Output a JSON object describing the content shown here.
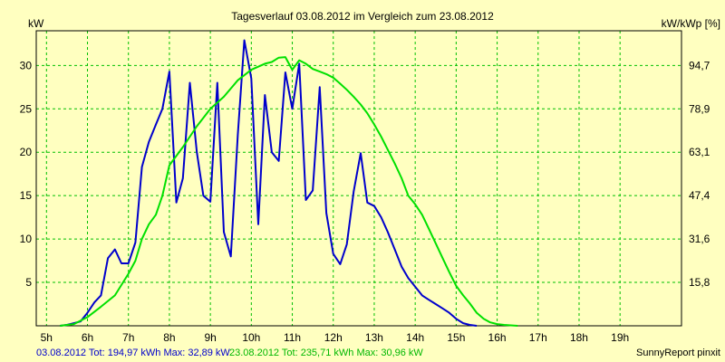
{
  "chart_data": {
    "type": "line",
    "title": "Tagesverlauf 03.08.2012 im Vergleich zum 23.08.2012",
    "ylabel_left": "kW",
    "ylabel_right": "kW/kWp [%]",
    "xlim": [
      4.75,
      20.5
    ],
    "ylim": [
      0,
      34
    ],
    "x_ticks": [
      {
        "x": 5,
        "label": "5h"
      },
      {
        "x": 6,
        "label": "6h"
      },
      {
        "x": 7,
        "label": "7h"
      },
      {
        "x": 8,
        "label": "8h"
      },
      {
        "x": 9,
        "label": "9h"
      },
      {
        "x": 10,
        "label": "10h"
      },
      {
        "x": 11,
        "label": "11h"
      },
      {
        "x": 12,
        "label": "12h"
      },
      {
        "x": 13,
        "label": "13h"
      },
      {
        "x": 14,
        "label": "14h"
      },
      {
        "x": 15,
        "label": "15h"
      },
      {
        "x": 16,
        "label": "16h"
      },
      {
        "x": 17,
        "label": "17h"
      },
      {
        "x": 18,
        "label": "18h"
      },
      {
        "x": 19,
        "label": "19h"
      }
    ],
    "y_ticks_left": [
      {
        "y": 5,
        "label": "5"
      },
      {
        "y": 10,
        "label": "10"
      },
      {
        "y": 15,
        "label": "15"
      },
      {
        "y": 20,
        "label": "20"
      },
      {
        "y": 25,
        "label": "25"
      },
      {
        "y": 30,
        "label": "30"
      }
    ],
    "y_ticks_right": [
      {
        "y": 5,
        "label": "15,8"
      },
      {
        "y": 10,
        "label": "31,6"
      },
      {
        "y": 15,
        "label": "47,4"
      },
      {
        "y": 20,
        "label": "63,1"
      },
      {
        "y": 25,
        "label": "78,9"
      },
      {
        "y": 30,
        "label": "94,7"
      }
    ],
    "grid": true,
    "series": [
      {
        "color": "#0000cc",
        "points": [
          [
            5.33,
            0
          ],
          [
            5.5,
            0.1
          ],
          [
            5.67,
            0.3
          ],
          [
            5.83,
            0.5
          ],
          [
            6.0,
            1.5
          ],
          [
            6.17,
            2.7
          ],
          [
            6.33,
            3.5
          ],
          [
            6.5,
            7.8
          ],
          [
            6.67,
            8.8
          ],
          [
            6.83,
            7.2
          ],
          [
            7.0,
            7.2
          ],
          [
            7.17,
            9.6
          ],
          [
            7.33,
            18.3
          ],
          [
            7.5,
            21.2
          ],
          [
            7.67,
            23.2
          ],
          [
            7.83,
            25.0
          ],
          [
            8.0,
            29.3
          ],
          [
            8.17,
            14.2
          ],
          [
            8.33,
            17.0
          ],
          [
            8.5,
            28.0
          ],
          [
            8.67,
            20.0
          ],
          [
            8.83,
            15.0
          ],
          [
            9.0,
            14.3
          ],
          [
            9.17,
            28.0
          ],
          [
            9.33,
            10.8
          ],
          [
            9.5,
            8.0
          ],
          [
            9.67,
            22.0
          ],
          [
            9.83,
            32.9
          ],
          [
            10.0,
            28.5
          ],
          [
            10.17,
            11.7
          ],
          [
            10.33,
            26.6
          ],
          [
            10.5,
            20.0
          ],
          [
            10.67,
            19.0
          ],
          [
            10.83,
            29.2
          ],
          [
            11.0,
            25.0
          ],
          [
            11.17,
            30.2
          ],
          [
            11.33,
            14.5
          ],
          [
            11.5,
            15.6
          ],
          [
            11.67,
            27.5
          ],
          [
            11.83,
            13.0
          ],
          [
            12.0,
            8.3
          ],
          [
            12.17,
            7.1
          ],
          [
            12.33,
            9.4
          ],
          [
            12.5,
            15.5
          ],
          [
            12.67,
            19.9
          ],
          [
            12.83,
            14.2
          ],
          [
            13.0,
            13.8
          ],
          [
            13.17,
            12.5
          ],
          [
            13.33,
            10.8
          ],
          [
            13.5,
            8.8
          ],
          [
            13.67,
            6.8
          ],
          [
            13.83,
            5.5
          ],
          [
            14.0,
            4.5
          ],
          [
            14.17,
            3.5
          ],
          [
            14.33,
            3.0
          ],
          [
            14.5,
            2.5
          ],
          [
            14.67,
            2.0
          ],
          [
            14.83,
            1.5
          ],
          [
            15.0,
            0.8
          ],
          [
            15.17,
            0.3
          ],
          [
            15.33,
            0.1
          ],
          [
            15.5,
            0
          ]
        ]
      },
      {
        "color": "#00e000",
        "points": [
          [
            5.33,
            0
          ],
          [
            5.67,
            0.2
          ],
          [
            6.0,
            1.0
          ],
          [
            6.33,
            2.2
          ],
          [
            6.67,
            3.5
          ],
          [
            7.0,
            6.0
          ],
          [
            7.17,
            7.5
          ],
          [
            7.33,
            10.0
          ],
          [
            7.5,
            11.7
          ],
          [
            7.67,
            12.8
          ],
          [
            7.83,
            15.0
          ],
          [
            8.0,
            18.5
          ],
          [
            8.33,
            20.6
          ],
          [
            8.67,
            23.0
          ],
          [
            9.0,
            25.0
          ],
          [
            9.33,
            26.4
          ],
          [
            9.67,
            28.3
          ],
          [
            10.0,
            29.5
          ],
          [
            10.33,
            30.2
          ],
          [
            10.5,
            30.4
          ],
          [
            10.67,
            30.9
          ],
          [
            10.83,
            30.96
          ],
          [
            11.0,
            29.5
          ],
          [
            11.17,
            30.6
          ],
          [
            11.33,
            30.2
          ],
          [
            11.5,
            29.6
          ],
          [
            11.67,
            29.3
          ],
          [
            11.83,
            29.0
          ],
          [
            12.0,
            28.6
          ],
          [
            12.17,
            27.9
          ],
          [
            12.33,
            27.2
          ],
          [
            12.5,
            26.4
          ],
          [
            12.67,
            25.5
          ],
          [
            12.83,
            24.5
          ],
          [
            13.0,
            23.2
          ],
          [
            13.17,
            21.8
          ],
          [
            13.33,
            20.3
          ],
          [
            13.5,
            18.7
          ],
          [
            13.67,
            17.0
          ],
          [
            13.83,
            15.0
          ],
          [
            14.0,
            14.0
          ],
          [
            14.17,
            12.8
          ],
          [
            14.33,
            11.2
          ],
          [
            14.5,
            9.5
          ],
          [
            14.67,
            7.8
          ],
          [
            14.83,
            6.2
          ],
          [
            15.0,
            4.6
          ],
          [
            15.17,
            3.5
          ],
          [
            15.33,
            2.6
          ],
          [
            15.5,
            1.5
          ],
          [
            15.67,
            0.8
          ],
          [
            15.83,
            0.4
          ],
          [
            16.0,
            0.2
          ],
          [
            16.17,
            0.1
          ],
          [
            16.33,
            0.05
          ],
          [
            16.5,
            0
          ]
        ]
      }
    ],
    "footer": {
      "series1_text": "03.08.2012 Tot: 194,97 kWh Max: 32,89 kW",
      "series2_text": "23.08.2012 Tot: 235,71 kWh Max: 30,96 kW",
      "credit": "SunnyReport pinxit"
    }
  }
}
